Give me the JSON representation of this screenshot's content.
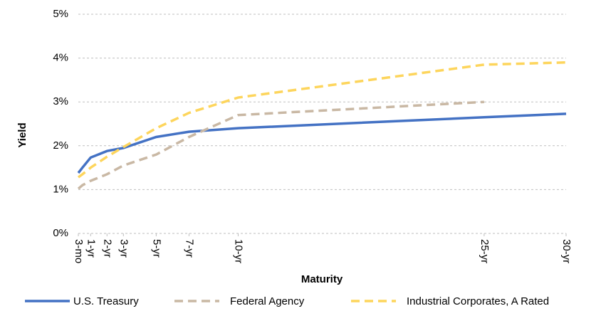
{
  "chart_data": {
    "type": "line",
    "xlabel": "Maturity",
    "ylabel": "Yield",
    "x": [
      0.25,
      0.5,
      1,
      2,
      3,
      5,
      7,
      10,
      25,
      30
    ],
    "series": [
      {
        "name": "U.S. Treasury",
        "color": "#4472c4",
        "dash": false,
        "values": [
          1.38,
          1.5,
          1.73,
          1.88,
          1.95,
          2.2,
          2.32,
          2.4,
          2.65,
          2.73
        ]
      },
      {
        "name": "Federal Agency",
        "color": "#c9b8a4",
        "dash": true,
        "values": [
          1.02,
          1.1,
          1.2,
          1.35,
          1.55,
          1.8,
          2.2,
          2.7,
          3.0,
          null
        ]
      },
      {
        "name": "Industrial Corporates, A Rated",
        "color": "#fdd55c",
        "dash": true,
        "values": [
          1.28,
          1.35,
          1.5,
          1.75,
          1.97,
          2.4,
          2.75,
          3.1,
          3.85,
          3.9
        ]
      }
    ],
    "xlim": [
      0.25,
      30
    ],
    "xticks": [
      {
        "value": 0.25,
        "label": "3-mo"
      },
      {
        "value": 1,
        "label": "1-yr"
      },
      {
        "value": 2,
        "label": "2-yr"
      },
      {
        "value": 3,
        "label": "3-yr"
      },
      {
        "value": 5,
        "label": "5-yr"
      },
      {
        "value": 7,
        "label": "7-yr"
      },
      {
        "value": 10,
        "label": "10-yr"
      },
      {
        "value": 25,
        "label": "25-yr"
      },
      {
        "value": 30,
        "label": "30-yr"
      }
    ],
    "ylim": [
      0,
      5
    ],
    "yticks": [
      {
        "value": 0,
        "label": "0%"
      },
      {
        "value": 1,
        "label": "1%"
      },
      {
        "value": 2,
        "label": "2%"
      },
      {
        "value": 3,
        "label": "3%"
      },
      {
        "value": 4,
        "label": "4%"
      },
      {
        "value": 5,
        "label": "5%"
      }
    ],
    "grid": true,
    "legend": "bottom"
  }
}
